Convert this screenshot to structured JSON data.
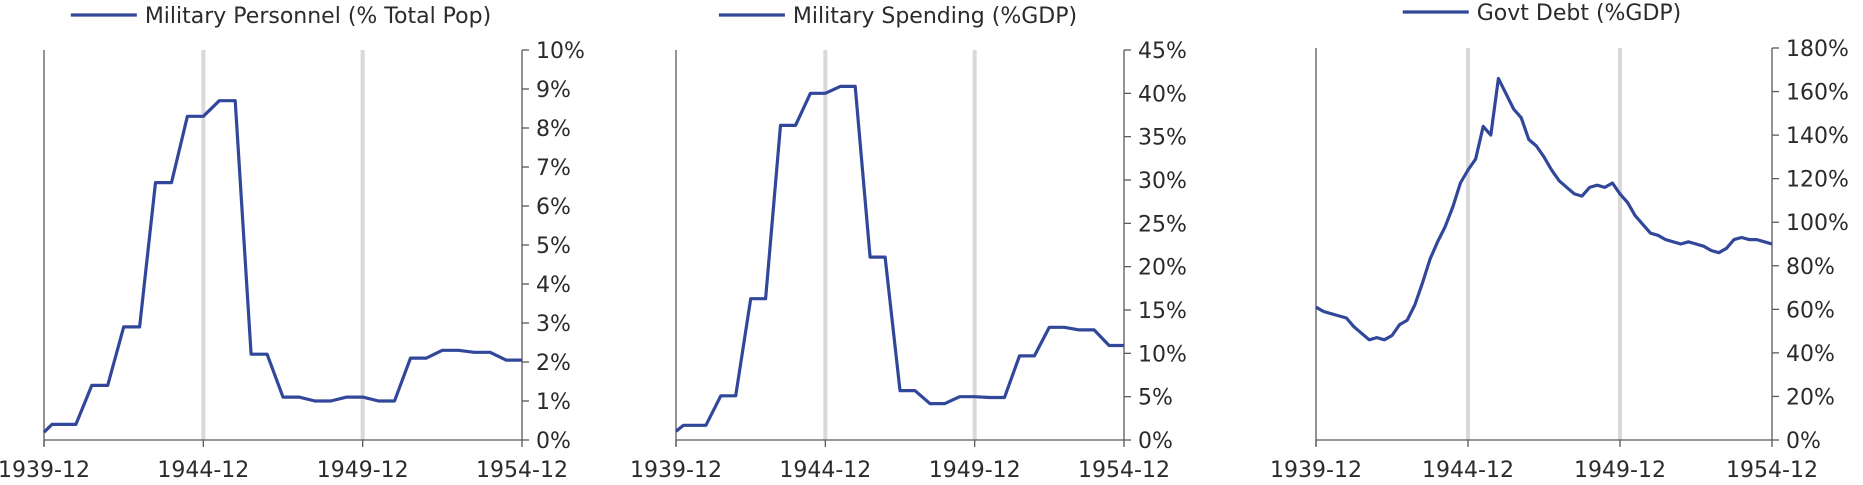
{
  "colors": {
    "series": "#31489a",
    "frame": "#595959",
    "highlight": "#d9d9d9",
    "text": "#2b2b2b"
  },
  "chart_data": [
    {
      "type": "line",
      "legend_position": "top-center",
      "series": [
        {
          "name": "Military Personnel (% Total Pop)",
          "x": [
            "1939-12",
            "1940-03",
            "1940-12",
            "1941-06",
            "1941-12",
            "1942-06",
            "1942-12",
            "1943-06",
            "1943-12",
            "1944-06",
            "1944-12",
            "1945-06",
            "1945-12",
            "1946-06",
            "1946-12",
            "1947-06",
            "1947-12",
            "1948-06",
            "1948-12",
            "1949-06",
            "1949-12",
            "1950-06",
            "1950-12",
            "1951-06",
            "1951-12",
            "1952-06",
            "1952-12",
            "1953-06",
            "1953-12",
            "1954-06",
            "1954-12"
          ],
          "values": [
            0.2,
            0.4,
            0.4,
            1.4,
            1.4,
            2.9,
            2.9,
            6.6,
            6.6,
            8.3,
            8.3,
            8.7,
            8.7,
            2.2,
            2.2,
            1.1,
            1.1,
            1.0,
            1.0,
            1.1,
            1.1,
            1.0,
            1.0,
            2.1,
            2.1,
            2.3,
            2.3,
            2.25,
            2.25,
            2.05,
            2.05
          ]
        }
      ],
      "x_ticks": [
        "1939-12",
        "1944-12",
        "1949-12",
        "1954-12"
      ],
      "y_ticks": [
        "0%",
        "1%",
        "2%",
        "3%",
        "4%",
        "5%",
        "6%",
        "7%",
        "8%",
        "9%",
        "10%"
      ],
      "ylim": [
        0,
        10
      ],
      "highlight_x": [
        "1944-12",
        "1949-12"
      ]
    },
    {
      "type": "line",
      "legend_position": "top-center",
      "series": [
        {
          "name": "Military Spending (%GDP)",
          "x": [
            "1939-12",
            "1940-03",
            "1940-12",
            "1941-06",
            "1941-12",
            "1942-06",
            "1942-12",
            "1943-06",
            "1943-12",
            "1944-06",
            "1944-12",
            "1945-06",
            "1945-12",
            "1946-06",
            "1946-12",
            "1947-06",
            "1947-12",
            "1948-06",
            "1948-12",
            "1949-06",
            "1949-12",
            "1950-06",
            "1950-12",
            "1951-06",
            "1951-12",
            "1952-06",
            "1952-12",
            "1953-06",
            "1953-12",
            "1954-06",
            "1954-12"
          ],
          "values": [
            1.0,
            1.7,
            1.7,
            5.1,
            5.1,
            16.3,
            16.3,
            36.3,
            36.3,
            40.0,
            40.0,
            40.8,
            40.8,
            21.1,
            21.1,
            5.7,
            5.7,
            4.2,
            4.2,
            5.0,
            5.0,
            4.9,
            4.9,
            9.7,
            9.7,
            13.0,
            13.0,
            12.7,
            12.7,
            10.9,
            10.9
          ]
        }
      ],
      "x_ticks": [
        "1939-12",
        "1944-12",
        "1949-12",
        "1954-12"
      ],
      "y_ticks": [
        "0%",
        "5%",
        "10%",
        "15%",
        "20%",
        "25%",
        "30%",
        "35%",
        "40%",
        "45%"
      ],
      "ylim": [
        0,
        45
      ],
      "highlight_x": [
        "1944-12",
        "1949-12"
      ]
    },
    {
      "type": "line",
      "legend_position": "top-center",
      "series": [
        {
          "name": "Govt Debt (%GDP)",
          "x": [
            "1939-12",
            "1940-03",
            "1940-06",
            "1940-09",
            "1940-12",
            "1941-03",
            "1941-06",
            "1941-09",
            "1941-12",
            "1942-03",
            "1942-06",
            "1942-09",
            "1942-12",
            "1943-03",
            "1943-06",
            "1943-09",
            "1943-12",
            "1944-03",
            "1944-06",
            "1944-09",
            "1944-12",
            "1945-03",
            "1945-06",
            "1945-09",
            "1945-12",
            "1946-03",
            "1946-06",
            "1946-09",
            "1946-12",
            "1947-03",
            "1947-06",
            "1947-09",
            "1947-12",
            "1948-03",
            "1948-06",
            "1948-09",
            "1948-12",
            "1949-03",
            "1949-06",
            "1949-09",
            "1949-12",
            "1950-03",
            "1950-06",
            "1950-09",
            "1950-12",
            "1951-03",
            "1951-06",
            "1951-09",
            "1951-12",
            "1952-03",
            "1952-06",
            "1952-09",
            "1952-12",
            "1953-03",
            "1953-06",
            "1953-09",
            "1953-12",
            "1954-03",
            "1954-06",
            "1954-09",
            "1954-12"
          ],
          "values": [
            61,
            59,
            58,
            57,
            56,
            52,
            49,
            46,
            47,
            46,
            48,
            53,
            55,
            62,
            72,
            83,
            91,
            98,
            107,
            118,
            124,
            129,
            144,
            140,
            166,
            159,
            152,
            148,
            138,
            135,
            130,
            124,
            119,
            116,
            113,
            112,
            116,
            117,
            116,
            118,
            113,
            109,
            103,
            99,
            95,
            94,
            92,
            91,
            90,
            91,
            90,
            89,
            87,
            86,
            88,
            92,
            93,
            92,
            92,
            91,
            90
          ]
        }
      ],
      "x_ticks": [
        "1939-12",
        "1944-12",
        "1949-12",
        "1954-12"
      ],
      "y_ticks": [
        "0%",
        "20%",
        "40%",
        "60%",
        "80%",
        "100%",
        "120%",
        "140%",
        "160%",
        "180%"
      ],
      "ylim": [
        0,
        180
      ],
      "highlight_x": [
        "1944-12",
        "1949-12"
      ]
    }
  ]
}
